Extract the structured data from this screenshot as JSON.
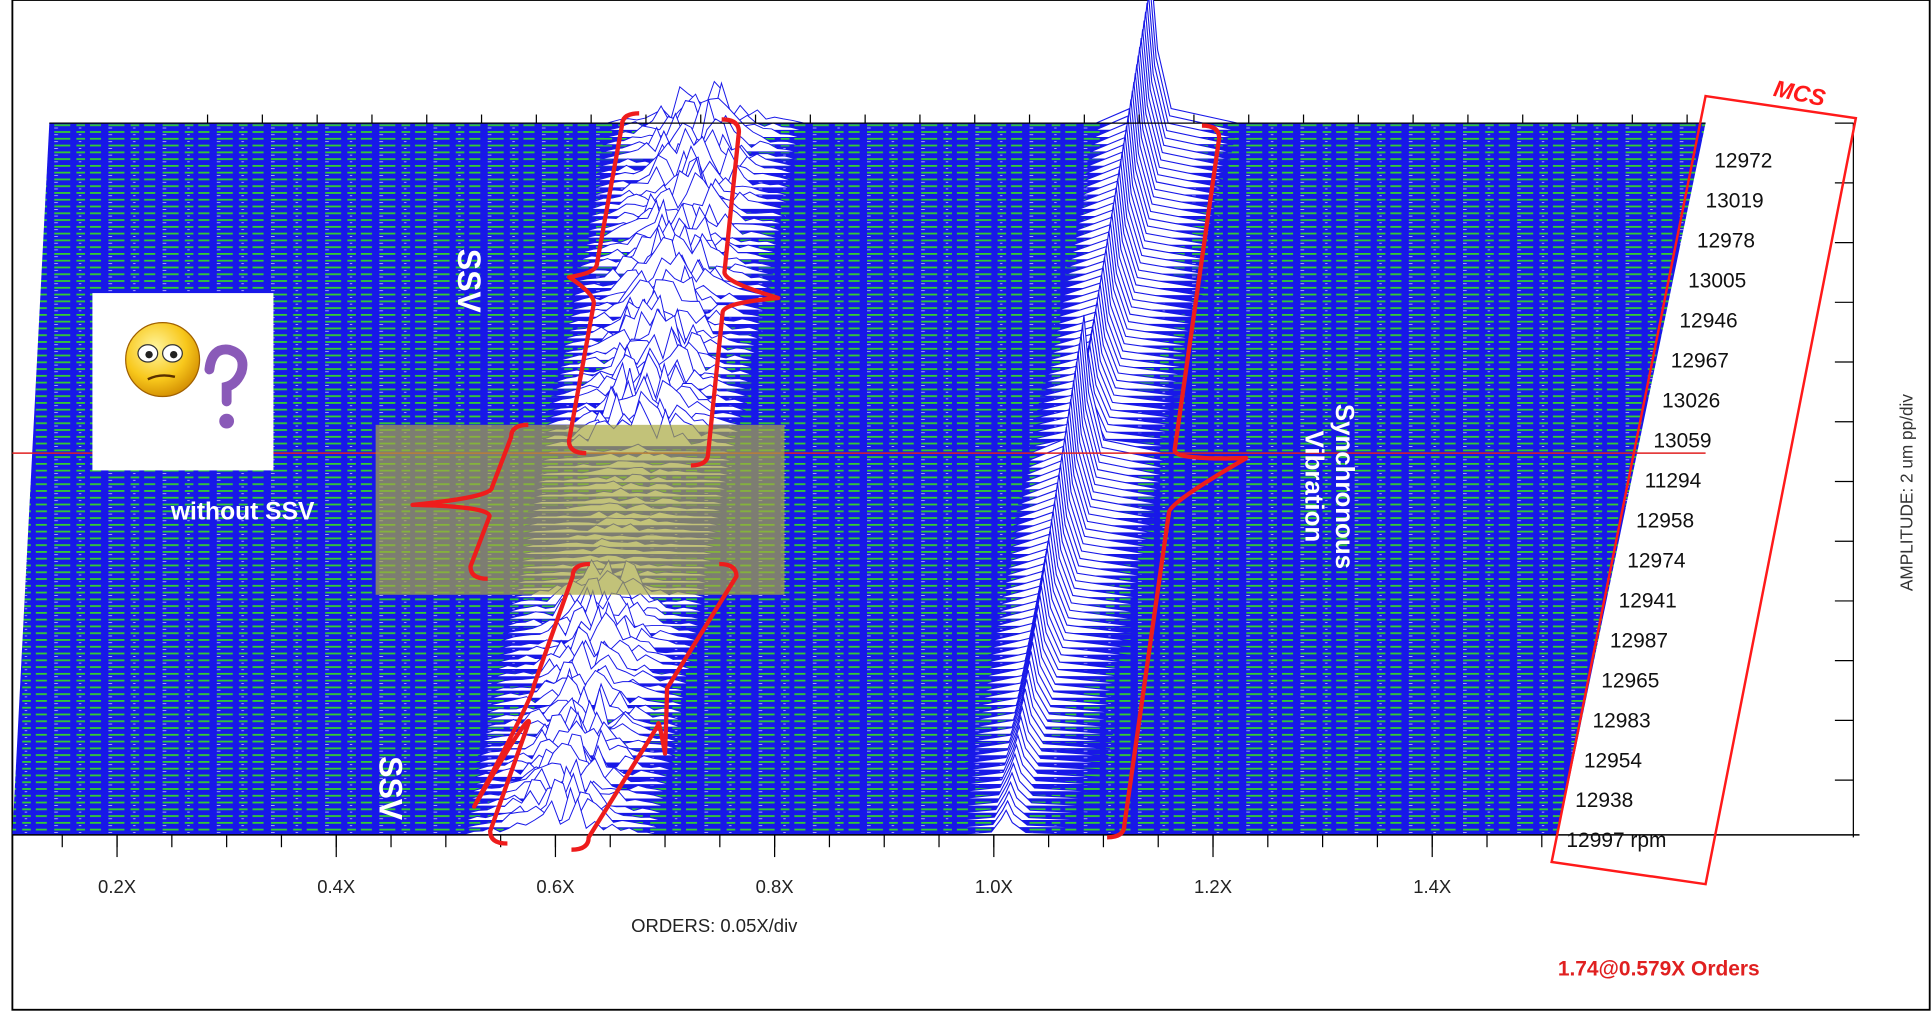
{
  "badge": "MCS",
  "speeds": [
    "12972",
    "13019",
    "12978",
    "13005",
    "12946",
    "12967",
    "13026",
    "13059",
    "11294",
    "12958",
    "12974",
    "12941",
    "12987",
    "12965",
    "12983",
    "12954",
    "12938",
    "12997 rpm"
  ],
  "x_axis": {
    "ticks": [
      "0.2X",
      "0.4X",
      "0.6X",
      "0.8X",
      "1.0X",
      "1.2X",
      "1.4X"
    ],
    "label": "ORDERS: 0.05X/div"
  },
  "amplitude_axis_label": "AMPLITUDE: 2 um pp/div",
  "annotations": {
    "ssv_upper": "SSV",
    "ssv_lower": "SSV",
    "without_ssv": "without SSV",
    "synchronous": [
      "Synchronous",
      "Vibration"
    ]
  },
  "cursor_readout": "1.74@0.579X Orders"
}
